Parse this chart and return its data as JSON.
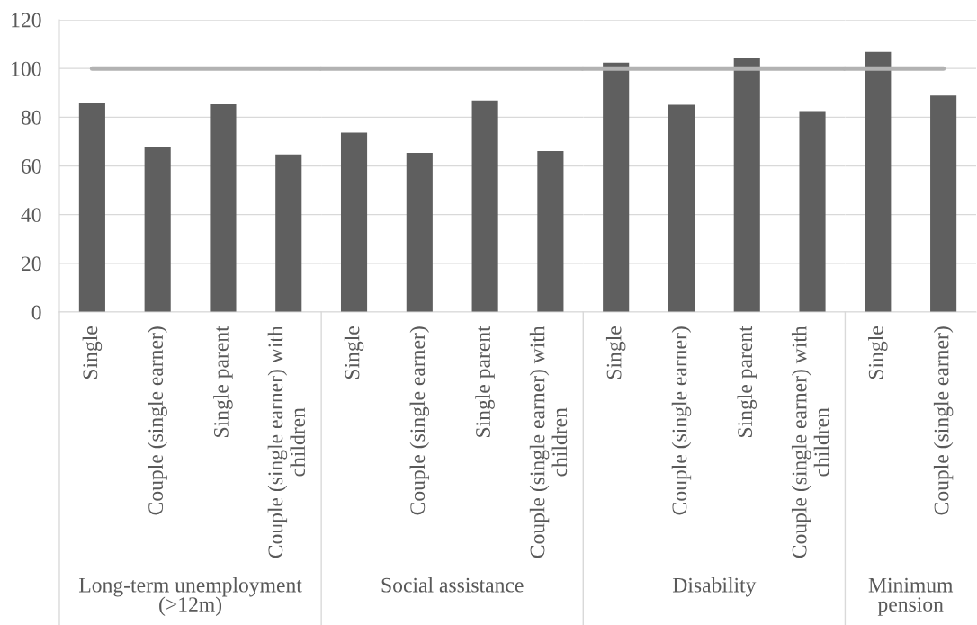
{
  "chart_data": [
    {
      "type": "bar",
      "xlabel": "Long-term unemployment (>12m)",
      "categories": [
        "Single",
        "Couple (single earner)",
        "Single parent",
        "Couple (single earner) with children"
      ],
      "values": [
        85.8,
        67.9,
        85.3,
        64.7
      ],
      "color": "#5f5f5f",
      "ylim": [
        0,
        120
      ],
      "yticks": [
        0,
        20,
        40,
        60,
        80,
        100,
        120
      ],
      "grid": "y",
      "ref_lines": [
        {
          "axis": "y",
          "value": 100,
          "color": "#b2b2b2"
        }
      ]
    },
    {
      "type": "bar",
      "xlabel": "Social assistance",
      "categories": [
        "Single",
        "Couple (single earner)",
        "Single parent",
        "Couple (single earner) with children"
      ],
      "values": [
        73.7,
        65.4,
        86.9,
        66.1
      ],
      "color": "#5f5f5f",
      "ylim": [
        0,
        120
      ],
      "yticks": [
        0,
        20,
        40,
        60,
        80,
        100,
        120
      ],
      "grid": "y",
      "tick_labels": "x",
      "ref_lines": [
        {
          "axis": "y",
          "value": 100,
          "color": "#b2b2b2"
        }
      ]
    },
    {
      "type": "bar",
      "xlabel": "Disability",
      "categories": [
        "Single",
        "Couple (single earner)",
        "Single parent",
        "Couple (single earner) with children"
      ],
      "values": [
        102.4,
        85.1,
        104.4,
        82.5
      ],
      "color": "#5f5f5f",
      "ylim": [
        0,
        120
      ],
      "yticks": [
        0,
        20,
        40,
        60,
        80,
        100,
        120
      ],
      "grid": "y",
      "tick_labels": "x",
      "ref_lines": [
        {
          "axis": "y",
          "value": 100,
          "color": "#b2b2b2"
        }
      ]
    },
    {
      "type": "bar",
      "xlabel": "Minimum pension",
      "categories": [
        "Single",
        "Couple (single earner)"
      ],
      "values": [
        106.8,
        88.9
      ],
      "color": "#5f5f5f",
      "ylim": [
        0,
        120
      ],
      "yticks": [
        0,
        20,
        40,
        60,
        80,
        100,
        120
      ],
      "grid": "y",
      "tick_labels": "x",
      "ref_lines": [
        {
          "axis": "y",
          "value": 100,
          "color": "#b2b2b2"
        }
      ]
    }
  ]
}
